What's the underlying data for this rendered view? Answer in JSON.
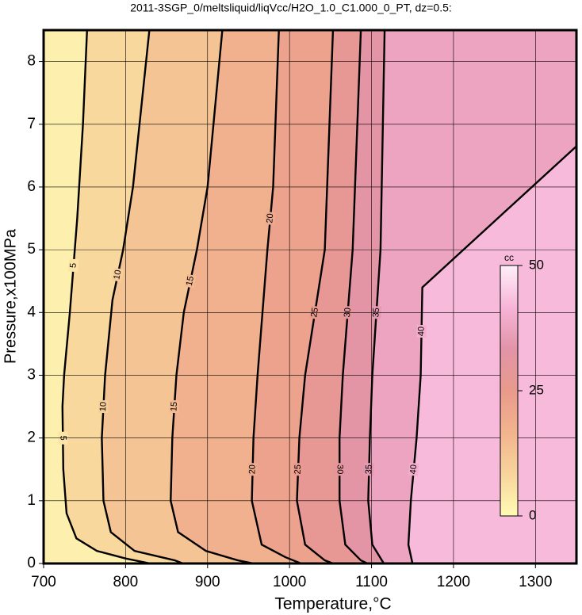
{
  "chart_data": {
    "type": "contour",
    "title": "2011-3SGP_0/meltsliquid/liqVcc/H2O_1.0_C1.000_0_PT, dz=0.5:",
    "x_label": "Temperature,°C",
    "y_label": "Pressure,x100MPa",
    "xlim": [
      700,
      1350
    ],
    "xticks": [
      700,
      800,
      900,
      1000,
      1100,
      1200,
      1300
    ],
    "ylim": [
      0,
      8.5
    ],
    "yticks": [
      0,
      1,
      2,
      3,
      4,
      5,
      6,
      7,
      8
    ],
    "grid": true,
    "colorbar": {
      "label": "cc",
      "zlim": [
        0,
        50
      ],
      "ticks": [
        0,
        25,
        50
      ],
      "colormap": [
        "#fffbb4",
        "#f8d49c",
        "#f2b48e",
        "#e99a8c",
        "#e294a8",
        "#f7b4d8",
        "#fff0fa"
      ]
    },
    "contours": [
      {
        "level": 5,
        "x": [
          753,
          748,
          741,
          732,
          725,
          723,
          724,
          728,
          740,
          765,
          800,
          830
        ],
        "y": [
          8.5,
          7,
          5.5,
          4,
          3,
          2.5,
          1.5,
          0.8,
          0.4,
          0.2,
          0.08,
          0
        ]
      },
      {
        "level": 10,
        "x": [
          829,
          809,
          797,
          784,
          775,
          771,
          773,
          782,
          811,
          860,
          870
        ],
        "y": [
          8.5,
          6,
          5,
          4.2,
          3,
          2,
          1,
          0.5,
          0.2,
          0.05,
          0
        ]
      },
      {
        "level": 15,
        "x": [
          918,
          900,
          887,
          871,
          862,
          857,
          855,
          864,
          898,
          937,
          956
        ],
        "y": [
          8.5,
          6,
          5,
          4,
          3,
          2,
          1,
          0.5,
          0.2,
          0.05,
          0
        ]
      },
      {
        "level": 20,
        "x": [
          987,
          980,
          973,
          961,
          956,
          954,
          966,
          995,
          1014
        ],
        "y": [
          8.5,
          6,
          5,
          3,
          2,
          1,
          0.3,
          0.1,
          0
        ]
      },
      {
        "level": 25,
        "x": [
          1053,
          1043,
          1019,
          1012,
          1009,
          1019,
          1043,
          1053
        ],
        "y": [
          8.5,
          5,
          3,
          2,
          1,
          0.3,
          0.05,
          0
        ]
      },
      {
        "level": 30,
        "x": [
          1087,
          1077,
          1065,
          1061,
          1061,
          1068,
          1087,
          1095
        ],
        "y": [
          8.5,
          5,
          3,
          2,
          1,
          0.3,
          0.05,
          0
        ]
      },
      {
        "level": 35,
        "x": [
          1116,
          1111,
          1101,
          1098,
          1096,
          1101,
          1115
        ],
        "y": [
          8.5,
          5,
          3,
          2,
          1,
          0.3,
          0
        ]
      },
      {
        "level": 40,
        "x": [
          1350,
          1162,
          1160,
          1155,
          1148,
          1145,
          1150
        ],
        "y": [
          6.65,
          4.4,
          3,
          2,
          1,
          0.3,
          0
        ]
      }
    ]
  }
}
